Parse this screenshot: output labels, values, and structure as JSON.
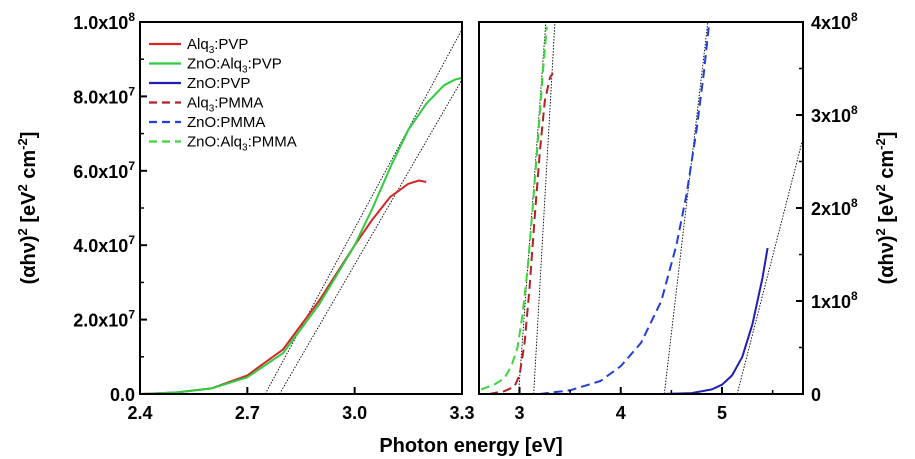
{
  "chart_data": [
    {
      "type": "line",
      "panel": "left",
      "xlabel": "Photon energy [eV]",
      "ylabel": "(αhν)² [eV² cm⁻²]",
      "xlim": [
        2.4,
        3.3
      ],
      "ylim": [
        0,
        100000000
      ],
      "x_ticks": [
        "2.4",
        "2.7",
        "3.0",
        "3.3"
      ],
      "x_tick_values": [
        2.4,
        2.7,
        3.0,
        3.3
      ],
      "y_ticks": [
        "0.0",
        "2.0x10^7",
        "4.0x10^7",
        "6.0x10^7",
        "8.0x10^7",
        "1.0x10^8"
      ],
      "y_tick_values": [
        0,
        20000000,
        40000000,
        60000000,
        80000000,
        100000000
      ],
      "grid": false,
      "legend_position": "top-left",
      "series": [
        {
          "name": "Alq3:PVP",
          "color": "#d62728",
          "dash": "solid",
          "x": [
            2.4,
            2.5,
            2.6,
            2.7,
            2.8,
            2.9,
            3.0,
            3.05,
            3.1,
            3.15,
            3.18,
            3.2
          ],
          "y": [
            0,
            400000,
            1500000,
            5000000,
            12000000,
            25000000,
            40000000,
            47000000,
            53000000,
            56500000,
            57400000,
            57000000
          ]
        },
        {
          "name": "ZnO:Alq3:PVP",
          "color": "#2ecc40",
          "dash": "solid",
          "x": [
            2.4,
            2.5,
            2.6,
            2.7,
            2.8,
            2.9,
            3.0,
            3.05,
            3.1,
            3.15,
            3.2,
            3.25,
            3.28,
            3.3
          ],
          "y": [
            0,
            400000,
            1500000,
            4500000,
            11000000,
            24000000,
            40000000,
            50000000,
            61000000,
            71000000,
            78000000,
            83000000,
            84500000,
            85000000
          ]
        },
        {
          "name": "ZnO:PVP",
          "color": "#1f1fb4",
          "dash": "solid",
          "x": [],
          "y": []
        },
        {
          "name": "Alq3:PMMA",
          "color": "#b22222",
          "dash": "dashed",
          "x": [],
          "y": []
        },
        {
          "name": "ZnO:PMMA",
          "color": "#1f3fd6",
          "dash": "dashed",
          "x": [],
          "y": []
        },
        {
          "name": "ZnO:Alq3:PMMA",
          "color": "#3cd63c",
          "dash": "dashed",
          "x": [],
          "y": []
        }
      ],
      "fit_lines": [
        {
          "x": [
            2.75,
            3.3
          ],
          "y": [
            0,
            98000000
          ]
        },
        {
          "x": [
            2.79,
            3.3
          ],
          "y": [
            0,
            84500000
          ]
        }
      ]
    },
    {
      "type": "line",
      "panel": "right",
      "xlabel": "Photon energy [eV]",
      "ylabel": "(αhν)² [eV² cm⁻²]",
      "xlim": [
        2.6,
        5.8
      ],
      "ylim": [
        0,
        400000000
      ],
      "x_ticks": [
        "3",
        "4",
        "5"
      ],
      "x_tick_values": [
        3,
        4,
        5
      ],
      "y_ticks": [
        "0",
        "1x10^8",
        "2x10^8",
        "3x10^8",
        "4x10^8"
      ],
      "y_tick_values": [
        0,
        100000000,
        200000000,
        300000000,
        400000000
      ],
      "grid": false,
      "series": [
        {
          "name": "Alq3:PMMA",
          "color": "#b22222",
          "dash": "dashed",
          "x": [
            2.7,
            2.85,
            2.95,
            3.0,
            3.05,
            3.1,
            3.15,
            3.2,
            3.25,
            3.3,
            3.33
          ],
          "y": [
            0,
            3000000,
            8000000,
            20000000,
            55000000,
            115000000,
            190000000,
            260000000,
            315000000,
            340000000,
            345000000
          ]
        },
        {
          "name": "ZnO:Alq3:PMMA",
          "color": "#3cd63c",
          "dash": "dashed",
          "x": [
            2.62,
            2.75,
            2.85,
            2.92,
            2.98,
            3.03,
            3.08,
            3.13,
            3.18,
            3.23,
            3.27
          ],
          "y": [
            5000000,
            10000000,
            17000000,
            30000000,
            50000000,
            85000000,
            135000000,
            200000000,
            270000000,
            345000000,
            395000000
          ]
        },
        {
          "name": "ZnO:PMMA",
          "color": "#1f3fd6",
          "dash": "dashed",
          "x": [
            3.2,
            3.5,
            3.8,
            4.0,
            4.2,
            4.4,
            4.55,
            4.65,
            4.75,
            4.82,
            4.87
          ],
          "y": [
            0,
            4000000,
            14000000,
            30000000,
            55000000,
            100000000,
            160000000,
            215000000,
            285000000,
            345000000,
            395000000
          ]
        },
        {
          "name": "ZnO:PVP",
          "color": "#1f1fb4",
          "dash": "solid",
          "x": [
            4.4,
            4.7,
            4.9,
            5.0,
            5.1,
            5.2,
            5.3,
            5.4,
            5.45
          ],
          "y": [
            0,
            1000000,
            5000000,
            10000000,
            20000000,
            40000000,
            75000000,
            125000000,
            157000000
          ]
        }
      ],
      "fit_lines": [
        {
          "x": [
            2.99,
            3.26
          ],
          "y": [
            0,
            400000000
          ]
        },
        {
          "x": [
            3.14,
            3.35
          ],
          "y": [
            0,
            400000000
          ]
        },
        {
          "x": [
            4.43,
            4.86
          ],
          "y": [
            0,
            400000000
          ]
        },
        {
          "x": [
            5.15,
            5.8
          ],
          "y": [
            0,
            275000000
          ]
        }
      ]
    }
  ],
  "legend": [
    {
      "prefix": "Alq",
      "sub": "3",
      "suffix": ":PVP",
      "color": "#d62728",
      "dash": "solid"
    },
    {
      "prefix": "ZnO:Alq",
      "sub": "3",
      "suffix": ":PVP",
      "color": "#2ecc40",
      "dash": "solid"
    },
    {
      "prefix": "ZnO:PVP",
      "sub": "",
      "suffix": "",
      "color": "#1f1fb4",
      "dash": "solid"
    },
    {
      "prefix": "Alq",
      "sub": "3",
      "suffix": ":PMMA",
      "color": "#b22222",
      "dash": "dashed"
    },
    {
      "prefix": "ZnO:PMMA",
      "sub": "",
      "suffix": "",
      "color": "#1f3fd6",
      "dash": "dashed"
    },
    {
      "prefix": "ZnO:Alq",
      "sub": "3",
      "suffix": ":PMMA",
      "color": "#3cd63c",
      "dash": "dashed"
    }
  ],
  "shared_xlabel": "Photon energy [eV]"
}
